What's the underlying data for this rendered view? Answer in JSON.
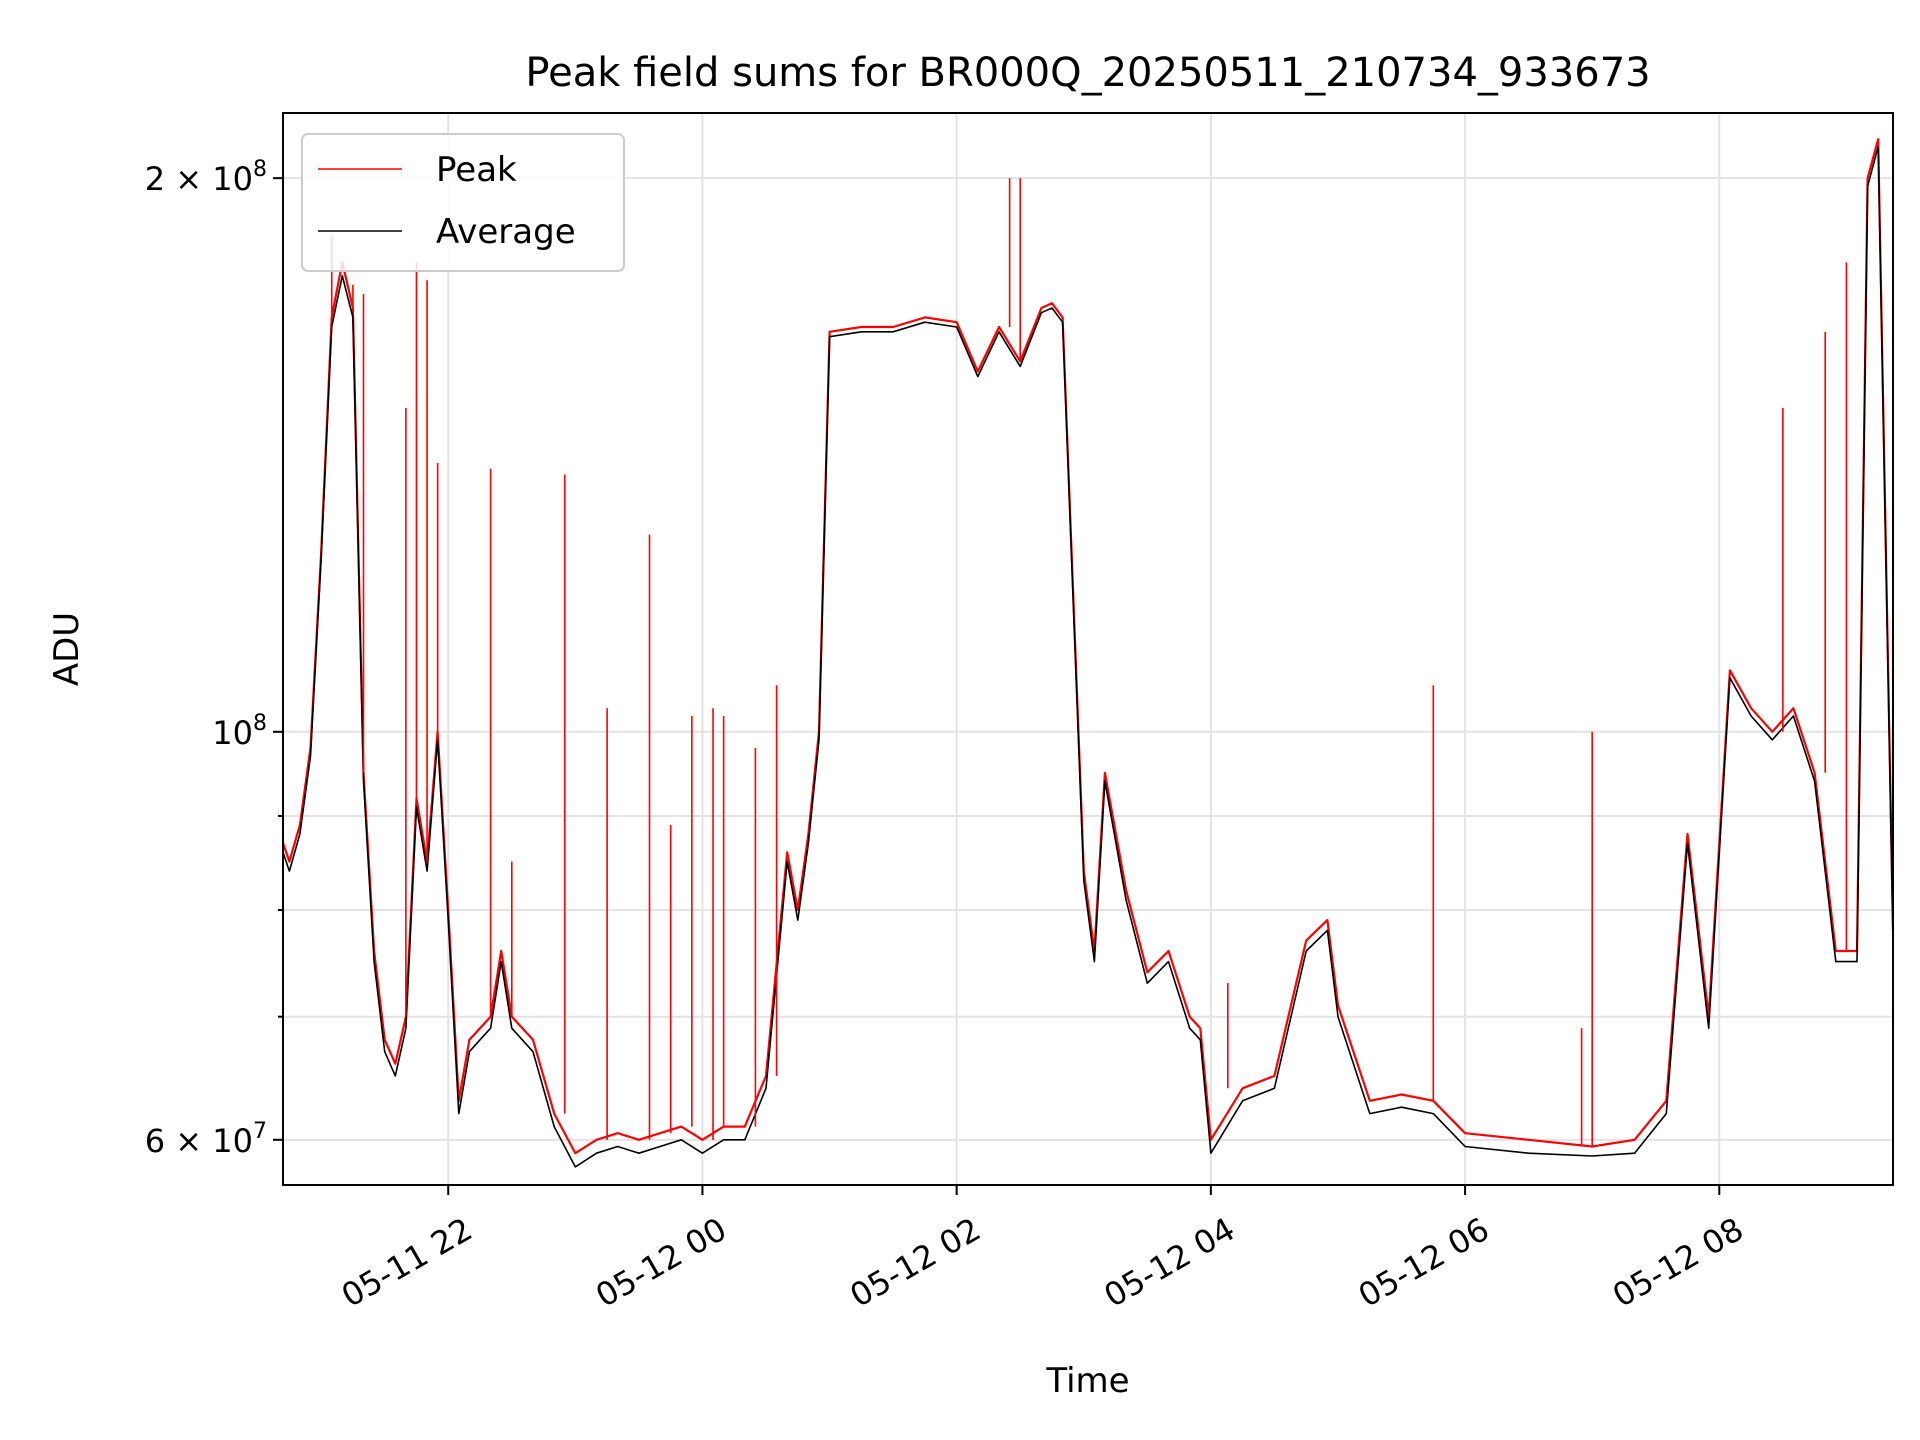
{
  "chart_data": {
    "type": "line",
    "title": "Peak field sums for BR000Q_20250511_210734_933673",
    "xlabel": "Time",
    "ylabel": "ADU",
    "y_scale": "log",
    "ylim": [
      56700000,
      217000000
    ],
    "xlim": [
      "05-11 20:42",
      "05-12 09:22"
    ],
    "grid": true,
    "legend_position": "top-left",
    "x_tick_labels": [
      "05-11 22",
      "05-12 00",
      "05-12 02",
      "05-12 04",
      "05-12 06",
      "05-12 08"
    ],
    "x_ticks": [
      "05-11 22:00",
      "05-12 00:00",
      "05-12 02:00",
      "05-12 04:00",
      "05-12 06:00",
      "05-12 08:00"
    ],
    "y_tick_labels": [
      {
        "value": 60000000,
        "label": "6 × 10",
        "exp": "7"
      },
      {
        "value": 100000000,
        "label": "10",
        "exp": "8"
      },
      {
        "value": 200000000,
        "label": "2 × 10",
        "exp": "8"
      }
    ],
    "y_minor_grid": [
      70000000,
      80000000,
      90000000
    ],
    "series": [
      {
        "name": "Peak",
        "color": "#ff0000",
        "x": [
          "05-11 20:42",
          "05-11 20:45",
          "05-11 20:50",
          "05-11 20:55",
          "05-11 21:00",
          "05-11 21:05",
          "05-11 21:10",
          "05-11 21:15",
          "05-11 21:20",
          "05-11 21:25",
          "05-11 21:30",
          "05-11 21:35",
          "05-11 21:40",
          "05-11 21:45",
          "05-11 21:50",
          "05-11 21:55",
          "05-11 22:00",
          "05-11 22:05",
          "05-11 22:10",
          "05-11 22:15",
          "05-11 22:20",
          "05-11 22:25",
          "05-11 22:30",
          "05-11 22:40",
          "05-11 22:50",
          "05-11 23:00",
          "05-11 23:10",
          "05-11 23:20",
          "05-11 23:30",
          "05-11 23:40",
          "05-11 23:50",
          "05-12 00:00",
          "05-12 00:10",
          "05-12 00:20",
          "05-12 00:30",
          "05-12 00:40",
          "05-12 00:45",
          "05-12 00:50",
          "05-12 00:55",
          "05-12 01:00",
          "05-12 01:15",
          "05-12 01:30",
          "05-12 01:45",
          "05-12 02:00",
          "05-12 02:10",
          "05-12 02:20",
          "05-12 02:30",
          "05-12 02:40",
          "05-12 02:45",
          "05-12 02:50",
          "05-12 03:00",
          "05-12 03:05",
          "05-12 03:10",
          "05-12 03:20",
          "05-12 03:30",
          "05-12 03:40",
          "05-12 03:50",
          "05-12 03:55",
          "05-12 04:00",
          "05-12 04:15",
          "05-12 04:30",
          "05-12 04:45",
          "05-12 04:55",
          "05-12 05:00",
          "05-12 05:15",
          "05-12 05:30",
          "05-12 05:45",
          "05-12 06:00",
          "05-12 06:30",
          "05-12 07:00",
          "05-12 07:20",
          "05-12 07:35",
          "05-12 07:45",
          "05-12 07:55",
          "05-12 08:05",
          "05-12 08:15",
          "05-12 08:25",
          "05-12 08:35",
          "05-12 08:45",
          "05-12 08:55",
          "05-12 09:05",
          "05-12 09:10",
          "05-12 09:15",
          "05-12 09:22"
        ],
        "y": [
          87000000,
          85000000,
          89000000,
          98000000,
          125000000,
          168000000,
          180000000,
          170000000,
          95000000,
          76000000,
          68000000,
          66000000,
          70000000,
          92000000,
          85000000,
          100000000,
          80000000,
          63000000,
          68000000,
          69000000,
          70000000,
          76000000,
          70000000,
          68000000,
          62000000,
          59000000,
          60000000,
          60500000,
          60000000,
          60500000,
          61000000,
          60000000,
          61000000,
          61000000,
          65000000,
          86000000,
          80000000,
          88000000,
          100000000,
          165000000,
          166000000,
          166000000,
          168000000,
          167000000,
          157000000,
          166000000,
          159000000,
          170000000,
          171000000,
          168000000,
          84000000,
          76000000,
          95000000,
          82000000,
          74000000,
          76000000,
          70000000,
          69000000,
          60000000,
          64000000,
          65000000,
          77000000,
          79000000,
          71000000,
          63000000,
          63500000,
          63000000,
          60500000,
          60000000,
          59500000,
          60000000,
          63000000,
          88000000,
          70000000,
          108000000,
          103000000,
          100000000,
          103000000,
          95000000,
          76000000,
          76000000,
          200000000,
          210000000,
          78000000
        ]
      },
      {
        "name": "Average",
        "color": "#000000",
        "x": [
          "05-11 20:42",
          "05-11 20:45",
          "05-11 20:50",
          "05-11 20:55",
          "05-11 21:00",
          "05-11 21:05",
          "05-11 21:10",
          "05-11 21:15",
          "05-11 21:20",
          "05-11 21:25",
          "05-11 21:30",
          "05-11 21:35",
          "05-11 21:40",
          "05-11 21:45",
          "05-11 21:50",
          "05-11 21:55",
          "05-11 22:00",
          "05-11 22:05",
          "05-11 22:10",
          "05-11 22:15",
          "05-11 22:20",
          "05-11 22:25",
          "05-11 22:30",
          "05-11 22:40",
          "05-11 22:50",
          "05-11 23:00",
          "05-11 23:10",
          "05-11 23:20",
          "05-11 23:30",
          "05-11 23:40",
          "05-11 23:50",
          "05-12 00:00",
          "05-12 00:10",
          "05-12 00:20",
          "05-12 00:30",
          "05-12 00:40",
          "05-12 00:45",
          "05-12 00:50",
          "05-12 00:55",
          "05-12 01:00",
          "05-12 01:15",
          "05-12 01:30",
          "05-12 01:45",
          "05-12 02:00",
          "05-12 02:10",
          "05-12 02:20",
          "05-12 02:30",
          "05-12 02:40",
          "05-12 02:45",
          "05-12 02:50",
          "05-12 03:00",
          "05-12 03:05",
          "05-12 03:10",
          "05-12 03:20",
          "05-12 03:30",
          "05-12 03:40",
          "05-12 03:50",
          "05-12 03:55",
          "05-12 04:00",
          "05-12 04:15",
          "05-12 04:30",
          "05-12 04:45",
          "05-12 04:55",
          "05-12 05:00",
          "05-12 05:15",
          "05-12 05:30",
          "05-12 05:45",
          "05-12 06:00",
          "05-12 06:30",
          "05-12 07:00",
          "05-12 07:20",
          "05-12 07:35",
          "05-12 07:45",
          "05-12 07:55",
          "05-12 08:05",
          "05-12 08:15",
          "05-12 08:25",
          "05-12 08:35",
          "05-12 08:45",
          "05-12 08:55",
          "05-12 09:05",
          "05-12 09:10",
          "05-12 09:15",
          "05-12 09:22"
        ],
        "y": [
          86000000,
          84000000,
          88000000,
          97000000,
          124000000,
          166000000,
          177000000,
          168000000,
          94000000,
          75000000,
          67000000,
          65000000,
          69000000,
          91000000,
          84000000,
          99000000,
          79000000,
          62000000,
          67000000,
          68000000,
          69000000,
          75000000,
          69000000,
          67000000,
          61000000,
          58000000,
          59000000,
          59500000,
          59000000,
          59500000,
          60000000,
          59000000,
          60000000,
          60000000,
          64000000,
          85000000,
          79000000,
          87000000,
          99000000,
          164000000,
          165000000,
          165000000,
          167000000,
          166000000,
          156000000,
          165000000,
          158000000,
          169000000,
          170000000,
          167000000,
          83000000,
          75000000,
          94000000,
          81000000,
          73000000,
          75000000,
          69000000,
          68000000,
          59000000,
          63000000,
          64000000,
          76000000,
          78000000,
          70000000,
          62000000,
          62500000,
          62000000,
          59500000,
          59000000,
          58800000,
          59000000,
          62000000,
          87000000,
          69000000,
          107000000,
          102000000,
          99000000,
          102000000,
          94000000,
          75000000,
          75000000,
          198000000,
          208000000,
          77000000
        ]
      }
    ],
    "spikes": [
      {
        "x": "05-11 21:05",
        "y": 186000000
      },
      {
        "x": "05-11 21:15",
        "y": 175000000
      },
      {
        "x": "05-11 21:20",
        "y": 173000000
      },
      {
        "x": "05-11 21:40",
        "y": 150000000
      },
      {
        "x": "05-11 21:45",
        "y": 180000000
      },
      {
        "x": "05-11 21:50",
        "y": 176000000
      },
      {
        "x": "05-11 21:55",
        "y": 140000000
      },
      {
        "x": "05-11 22:20",
        "y": 139000000
      },
      {
        "x": "05-11 22:30",
        "y": 85000000
      },
      {
        "x": "05-11 22:55",
        "y": 138000000
      },
      {
        "x": "05-11 23:15",
        "y": 103000000
      },
      {
        "x": "05-11 23:35",
        "y": 128000000
      },
      {
        "x": "05-11 23:45",
        "y": 89000000
      },
      {
        "x": "05-11 23:55",
        "y": 102000000
      },
      {
        "x": "05-12 00:05",
        "y": 103000000
      },
      {
        "x": "05-12 00:10",
        "y": 102000000
      },
      {
        "x": "05-12 00:25",
        "y": 98000000
      },
      {
        "x": "05-12 00:35",
        "y": 106000000
      },
      {
        "x": "05-12 02:25",
        "y": 200000000
      },
      {
        "x": "05-12 02:30",
        "y": 200000000
      },
      {
        "x": "05-12 04:08",
        "y": 73000000
      },
      {
        "x": "05-12 05:45",
        "y": 106000000
      },
      {
        "x": "05-12 06:55",
        "y": 69000000
      },
      {
        "x": "05-12 07:00",
        "y": 100000000
      },
      {
        "x": "05-12 08:30",
        "y": 150000000
      },
      {
        "x": "05-12 08:50",
        "y": 165000000
      },
      {
        "x": "05-12 09:00",
        "y": 180000000
      }
    ]
  }
}
